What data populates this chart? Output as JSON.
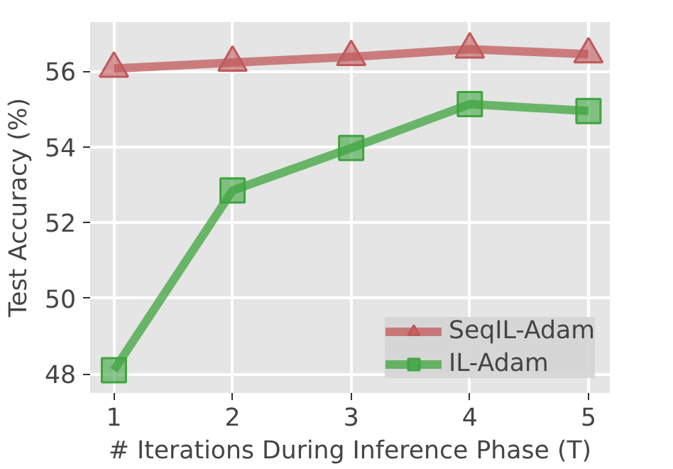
{
  "chart_data": {
    "type": "line",
    "xlabel": "# Iterations During Inference Phase (T)",
    "ylabel": "Test Accuracy (%)",
    "x": [
      1,
      2,
      3,
      4,
      5
    ],
    "series": [
      {
        "name": "SeqIL-Adam",
        "color": "#c0585a",
        "marker": "triangle",
        "values": [
          56.07,
          56.23,
          56.38,
          56.58,
          56.45
        ]
      },
      {
        "name": "IL-Adam",
        "color": "#3da43d",
        "marker": "square",
        "values": [
          48.1,
          52.85,
          53.97,
          55.13,
          54.95
        ]
      }
    ],
    "xlim": [
      0.8,
      5.18
    ],
    "ylim": [
      47.5,
      57.3
    ],
    "xticks": [
      1,
      2,
      3,
      4,
      5
    ],
    "yticks": [
      48,
      50,
      52,
      54,
      56
    ],
    "grid": true,
    "legend": "bottom right",
    "line_style": "solid"
  }
}
